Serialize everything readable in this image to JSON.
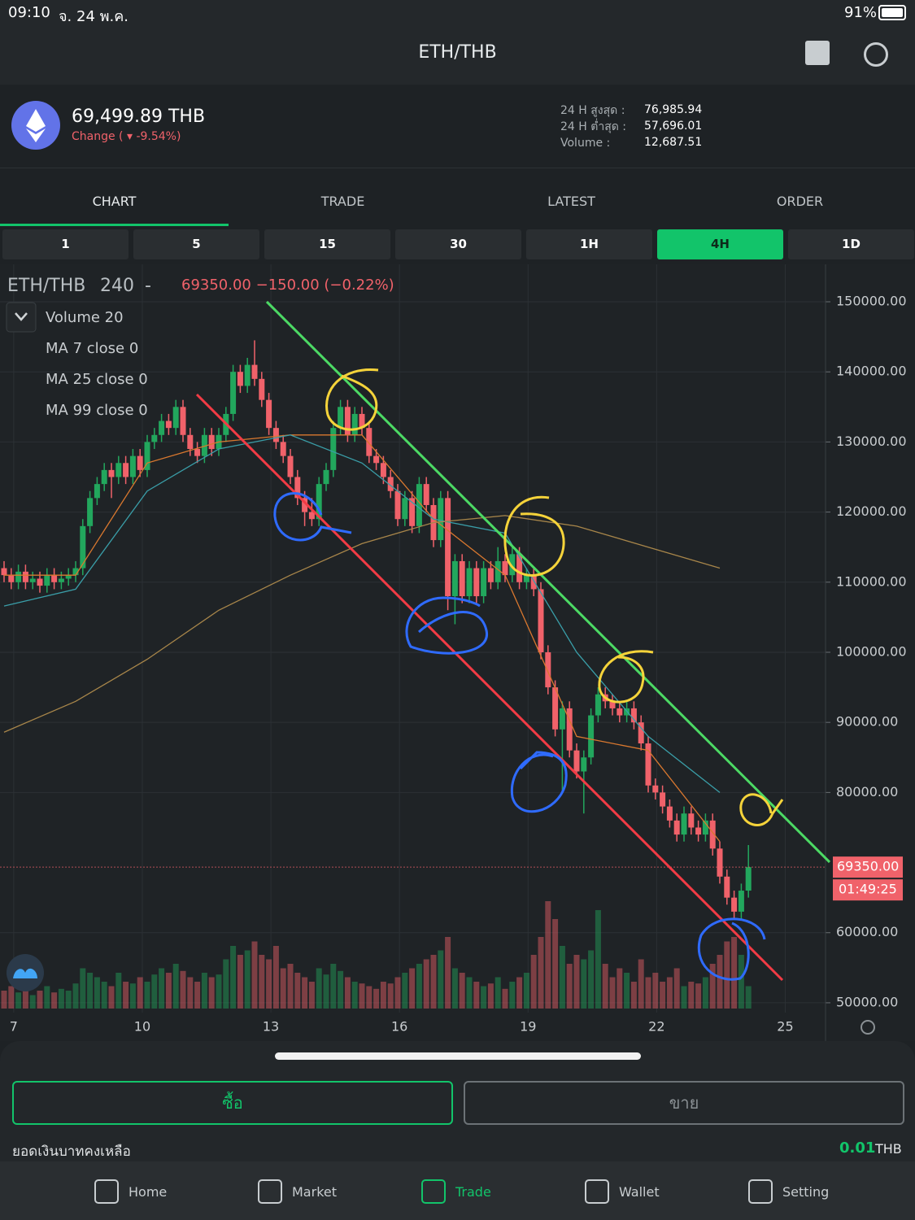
{
  "status": {
    "time": "09:10",
    "date": "จ. 24 พ.ค.",
    "battery": "91%"
  },
  "header": {
    "title": "ETH/THB"
  },
  "ticker": {
    "price": "69,499.89 THB",
    "change_label": "Change (",
    "change": "-9.54%)",
    "stats": [
      {
        "label": "24 H สูงสุด :",
        "value": "76,985.94"
      },
      {
        "label": "24 H ต่ำสุด :",
        "value": "57,696.01"
      },
      {
        "label": "Volume :",
        "value": "12,687.51"
      }
    ]
  },
  "tabs": [
    "CHART",
    "TRADE",
    "LATEST",
    "ORDER"
  ],
  "intervals": [
    "1",
    "5",
    "15",
    "30",
    "1H",
    "4H",
    "1D"
  ],
  "chart": {
    "type": "candlestick",
    "title": "ETH/THB",
    "interval": "240",
    "separator": "-",
    "last_quote": "69350.00 −150.00 (−0.22%)",
    "indicators": [
      "Volume 20",
      "MA 7 close 0",
      "MA 25 close 0",
      "MA 99 close 0"
    ],
    "up_color": "#22a75d",
    "down_color": "#f0626a",
    "ylim": [
      48600,
      155340
    ],
    "yticks": [
      {
        "value": 150000,
        "label": "150000.00"
      },
      {
        "value": 140000,
        "label": "140000.00"
      },
      {
        "value": 130000,
        "label": "130000.00"
      },
      {
        "value": 120000,
        "label": "120000.00"
      },
      {
        "value": 110000,
        "label": "110000.00"
      },
      {
        "value": 100000,
        "label": "100000.00"
      },
      {
        "value": 90000,
        "label": "90000.00"
      },
      {
        "value": 80000,
        "label": "80000.00"
      },
      {
        "value": 60000,
        "label": "60000.00"
      },
      {
        "value": 50000,
        "label": "50000.00"
      }
    ],
    "xlim": [
      6.68,
      25.94
    ],
    "xticks": [
      7,
      10,
      13,
      16,
      19,
      22,
      25
    ],
    "grid": true,
    "last_price": {
      "value": 69350,
      "label": "69350.00"
    },
    "countdown": "01:49:25",
    "open": [
      112000,
      111000,
      110000,
      111500,
      110000,
      110500,
      109500,
      111000,
      110000,
      110500,
      111000,
      112000,
      118000,
      122000,
      124000,
      126000,
      125000,
      127000,
      125000,
      128000,
      126000,
      130000,
      131000,
      133000,
      132000,
      135000,
      131000,
      129000,
      128000,
      131000,
      129000,
      131000,
      134000,
      140000,
      138000,
      141000,
      139000,
      136000,
      132000,
      130000,
      128000,
      125000,
      122000,
      120000,
      119000,
      124000,
      126000,
      132000,
      135000,
      131000,
      134000,
      132000,
      128000,
      127000,
      125000,
      123000,
      119000,
      122000,
      118000,
      124000,
      121000,
      116000,
      122000,
      108000,
      113000,
      108000,
      112000,
      108000,
      112000,
      110000,
      113000,
      111000,
      114000,
      110000,
      111000,
      109000,
      100000,
      95000,
      89000,
      92000,
      86000,
      83000,
      85000,
      91000,
      94000,
      93000,
      92000,
      91000,
      92000,
      90000,
      87000,
      81000,
      80000,
      78000,
      76000,
      74000,
      77000,
      75000,
      74000,
      76000,
      72000,
      68000,
      65000,
      63000,
      66000
    ],
    "high": [
      113000,
      112000,
      112500,
      112500,
      111500,
      111500,
      112000,
      112000,
      111500,
      112000,
      113000,
      119000,
      123000,
      125000,
      127000,
      127000,
      128000,
      128000,
      129000,
      129000,
      131000,
      132000,
      134000,
      134000,
      136000,
      136000,
      132000,
      130000,
      132000,
      132000,
      132000,
      135000,
      141000,
      141000,
      142000,
      144500,
      140000,
      137000,
      133000,
      131000,
      129000,
      126000,
      123000,
      122000,
      125000,
      127000,
      133000,
      136000,
      136000,
      135000,
      135000,
      133000,
      129000,
      128000,
      126000,
      124000,
      123000,
      123000,
      125000,
      125000,
      122000,
      123000,
      123000,
      114000,
      114000,
      113000,
      113000,
      113000,
      113000,
      115000,
      114000,
      115000,
      115000,
      112000,
      112000,
      110000,
      101000,
      96000,
      93000,
      93000,
      87000,
      86000,
      92000,
      95000,
      95000,
      94000,
      93000,
      93000,
      93000,
      91000,
      88000,
      82000,
      81000,
      79000,
      77000,
      78000,
      78000,
      76000,
      77000,
      77000,
      73000,
      69000,
      66000,
      67000,
      72500
    ],
    "low": [
      110000,
      109000,
      109000,
      109000,
      109000,
      108500,
      108500,
      109000,
      109000,
      109500,
      110000,
      111000,
      117000,
      121000,
      123000,
      122000,
      124000,
      124000,
      124000,
      125000,
      125000,
      129000,
      130000,
      131000,
      131000,
      130000,
      128000,
      127000,
      127000,
      128000,
      128000,
      130000,
      133000,
      137000,
      137000,
      138000,
      135000,
      131000,
      129000,
      127000,
      124000,
      121000,
      118000,
      118000,
      118000,
      123000,
      125000,
      131000,
      130000,
      130000,
      131000,
      127000,
      126000,
      124000,
      122000,
      118000,
      118000,
      117000,
      117000,
      120000,
      115000,
      115000,
      106000,
      104000,
      107000,
      107000,
      107000,
      107000,
      109000,
      109000,
      110000,
      110000,
      109000,
      109000,
      108000,
      99000,
      94000,
      88000,
      80000,
      85000,
      82000,
      77000,
      84000,
      90000,
      92000,
      91000,
      90000,
      90000,
      89000,
      86000,
      80000,
      79000,
      77000,
      75000,
      73000,
      73000,
      74000,
      73000,
      73000,
      71000,
      67000,
      64000,
      62000,
      62000,
      65000
    ],
    "close": [
      111000,
      110000,
      111500,
      110000,
      110500,
      109500,
      111000,
      110000,
      110500,
      111000,
      112000,
      118000,
      122000,
      124000,
      126000,
      125000,
      127000,
      125000,
      128000,
      126000,
      130000,
      131000,
      133000,
      132000,
      135000,
      131000,
      129000,
      128000,
      131000,
      129000,
      131000,
      134000,
      140000,
      138000,
      141000,
      139000,
      136000,
      132000,
      130000,
      128000,
      125000,
      122000,
      120000,
      119000,
      124000,
      126000,
      132000,
      135000,
      131000,
      134000,
      132000,
      128000,
      127000,
      125000,
      123000,
      119000,
      122000,
      118000,
      124000,
      121000,
      116000,
      122000,
      108000,
      113000,
      108000,
      112000,
      108000,
      112000,
      110000,
      113000,
      111000,
      114000,
      110000,
      111000,
      109000,
      100000,
      95000,
      89000,
      92000,
      86000,
      83000,
      85000,
      91000,
      94000,
      93000,
      92000,
      91000,
      92000,
      90000,
      87000,
      81000,
      80000,
      78000,
      76000,
      74000,
      77000,
      75000,
      74000,
      76000,
      72000,
      68000,
      65000,
      63000,
      66000,
      69350
    ],
    "volume": [
      20,
      25,
      18,
      22,
      15,
      20,
      25,
      18,
      22,
      20,
      28,
      45,
      40,
      35,
      30,
      25,
      40,
      30,
      28,
      35,
      30,
      38,
      45,
      40,
      50,
      42,
      35,
      30,
      40,
      35,
      38,
      55,
      70,
      60,
      65,
      75,
      60,
      55,
      70,
      45,
      50,
      40,
      35,
      30,
      45,
      38,
      50,
      42,
      35,
      30,
      28,
      25,
      22,
      30,
      28,
      35,
      40,
      45,
      50,
      55,
      60,
      65,
      80,
      45,
      40,
      35,
      30,
      25,
      28,
      35,
      22,
      30,
      35,
      40,
      60,
      80,
      120,
      100,
      70,
      50,
      60,
      55,
      65,
      110,
      50,
      35,
      45,
      40,
      30,
      55,
      35,
      40,
      30,
      35,
      45,
      25,
      30,
      28,
      35,
      50,
      60,
      75,
      80,
      60,
      25
    ],
    "ma": [
      {
        "color": "#d9782f",
        "index": [
          0,
          10,
          20,
          30,
          40,
          50,
          60,
          70,
          80,
          90,
          100
        ],
        "values": [
          111000,
          111000,
          127000,
          130000,
          131000,
          131000,
          119000,
          111000,
          88000,
          86000,
          73000
        ]
      },
      {
        "color": "#3a9ea8",
        "index": [
          0,
          10,
          20,
          30,
          40,
          50,
          60,
          70,
          80,
          90,
          100
        ],
        "values": [
          106600,
          109000,
          123000,
          129000,
          131000,
          127000,
          119000,
          117000,
          100000,
          88000,
          80000
        ]
      },
      {
        "color": "#a8864a",
        "index": [
          0,
          10,
          20,
          30,
          40,
          50,
          60,
          70,
          80,
          90,
          100
        ],
        "values": [
          88600,
          93000,
          99000,
          106000,
          111000,
          115500,
          118500,
          119500,
          118000,
          115000,
          112000
        ]
      }
    ]
  },
  "actions": {
    "buy": "ซื้อ",
    "sell": "ขาย",
    "balance_label": "ยอดเงินบาทคงเหลือ",
    "balance": "0.01",
    "currency": "THB"
  },
  "nav": [
    "Home",
    "Market",
    "Trade",
    "Wallet",
    "Setting"
  ]
}
